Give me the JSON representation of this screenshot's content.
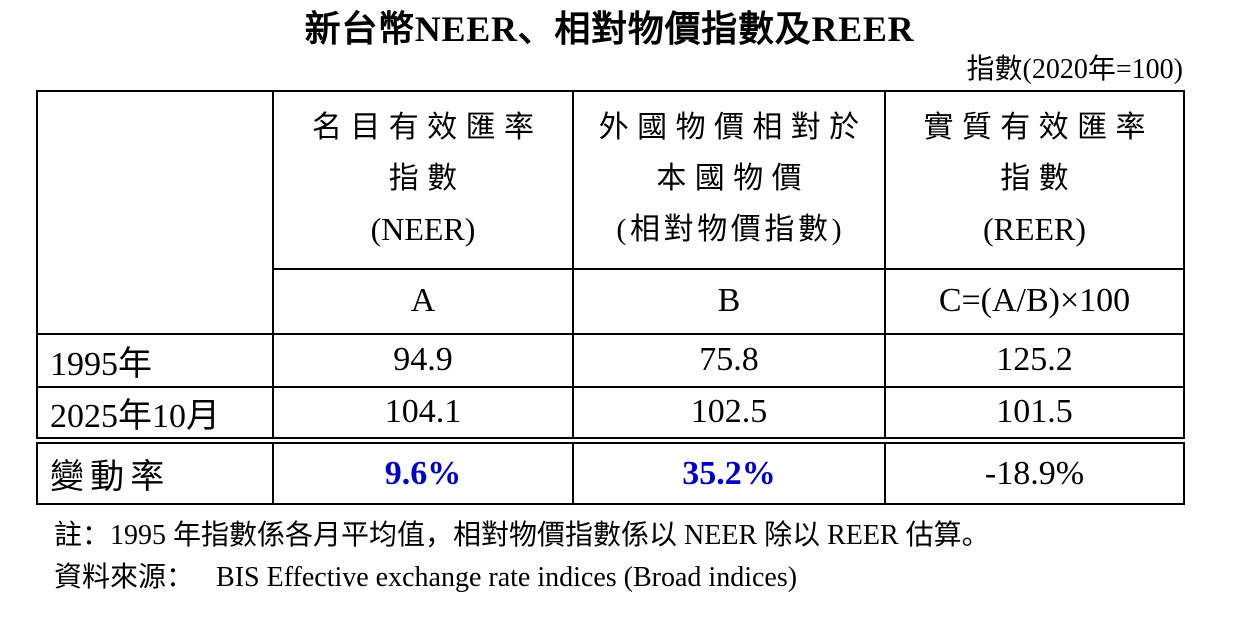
{
  "title": "新台幣NEER、相對物價指數及REER",
  "unit_note": "指數(2020年=100)",
  "colors": {
    "accent": "#0000CC",
    "text": "#000000"
  },
  "table": {
    "columns": [
      {
        "title_lines": [
          "名目有效匯率",
          "指數",
          "(NEER)"
        ],
        "code": "A"
      },
      {
        "title_lines": [
          "外國物價相對於",
          "本國物價",
          "(相對物價指數)"
        ],
        "code": "B"
      },
      {
        "title_lines": [
          "實質有效匯率",
          "指數",
          "(REER)"
        ],
        "code": "C=(A/B)×100"
      }
    ],
    "rows": [
      {
        "label": "1995年",
        "values": [
          "94.9",
          "75.8",
          "125.2"
        ]
      },
      {
        "label": "2025年10月",
        "values": [
          "104.1",
          "102.5",
          "101.5"
        ]
      },
      {
        "label": "變動率",
        "values": [
          "9.6%",
          "35.2%",
          "-18.9%"
        ],
        "emphasized_values": [
          true,
          true,
          false
        ]
      }
    ]
  },
  "notes": [
    {
      "label": "註：",
      "text": "1995 年指數係各月平均值，相對物價指數係以 NEER 除以 REER 估算。"
    },
    {
      "label": "資料來源：",
      "text": "BIS Effective exchange rate indices (Broad indices)"
    }
  ]
}
